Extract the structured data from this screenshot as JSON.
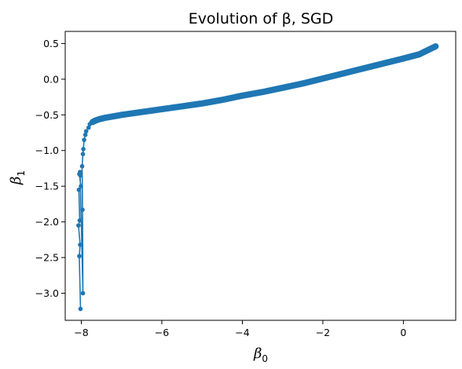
{
  "chart_data": {
    "type": "line",
    "title": "Evolution of β, SGD",
    "xlabel": {
      "symbol": "β",
      "subscript": "0"
    },
    "ylabel": {
      "symbol": "β",
      "subscript": "1"
    },
    "xlim": [
      -8.4,
      1.3
    ],
    "ylim": [
      -3.38,
      0.67
    ],
    "xticks": [
      -8,
      -6,
      -4,
      -2,
      0
    ],
    "xtick_labels": [
      "−8",
      "−6",
      "−4",
      "−2",
      "0"
    ],
    "yticks": [
      0.5,
      0.0,
      -0.5,
      -1.0,
      -1.5,
      -2.0,
      -2.5,
      -3.0
    ],
    "ytick_labels": [
      "0.5",
      "0.0",
      "−0.5",
      "−1.0",
      "−1.5",
      "−2.0",
      "−2.5",
      "−3.0"
    ],
    "grid": false,
    "legend": "none",
    "series_color": "#1f77b4",
    "series": [
      {
        "x": [
          -8.02,
          -8.05,
          -8.03,
          -8.07,
          -8.04,
          -8.06,
          -8.01,
          -8.05,
          -8.02,
          -8.03,
          -7.96,
          -7.97,
          -7.98,
          -7.96,
          -7.95,
          -7.93,
          -7.9,
          -7.88,
          -7.82,
          -7.79,
          -7.72,
          -7.65,
          -7.55,
          -7.4,
          -7.2,
          -7.0,
          -6.5,
          -6.0,
          -5.5,
          -5.0,
          -4.5,
          -4.0,
          -3.5,
          -3.0,
          -2.5,
          -2.0,
          -1.5,
          -1.0,
          -0.5,
          0.0,
          0.4,
          0.8
        ],
        "y": [
          -3.22,
          -2.48,
          -2.32,
          -2.05,
          -1.98,
          -1.55,
          -1.5,
          -1.33,
          -1.35,
          -1.3,
          -3.0,
          -1.83,
          -1.22,
          -1.05,
          -0.98,
          -0.85,
          -0.78,
          -0.73,
          -0.68,
          -0.63,
          -0.6,
          -0.58,
          -0.56,
          -0.54,
          -0.52,
          -0.5,
          -0.46,
          -0.42,
          -0.38,
          -0.34,
          -0.29,
          -0.23,
          -0.18,
          -0.12,
          -0.06,
          0.01,
          0.08,
          0.15,
          0.22,
          0.29,
          0.35,
          0.46
        ]
      }
    ]
  }
}
